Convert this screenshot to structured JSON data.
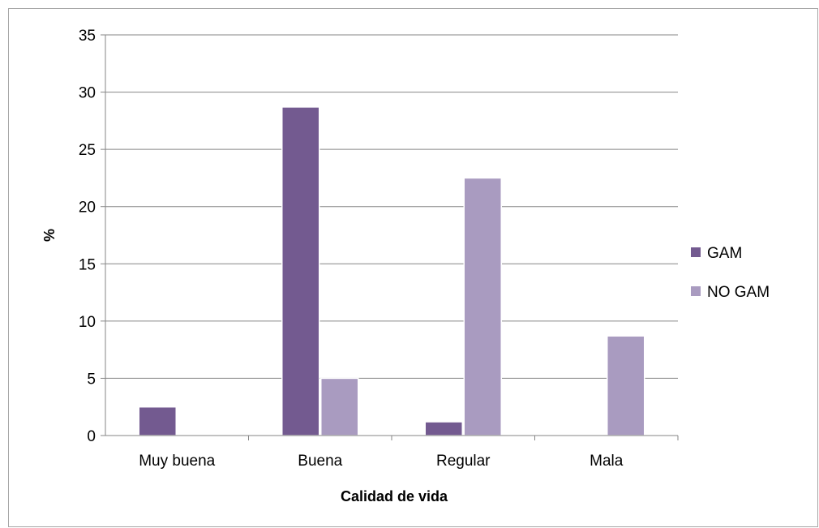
{
  "chart_data": {
    "type": "bar",
    "title": "",
    "xlabel": "Calidad de vida",
    "ylabel": "%",
    "categories": [
      "Muy buena",
      "Buena",
      "Regular",
      "Mala"
    ],
    "series": [
      {
        "name": "GAM",
        "values": [
          2.5,
          28.7,
          1.2,
          0
        ],
        "color": "#735A90"
      },
      {
        "name": "NO GAM",
        "values": [
          0,
          5.0,
          22.5,
          8.7
        ],
        "color": "#A99BC0"
      }
    ],
    "ylim": [
      0,
      35
    ],
    "yticks": [
      0,
      5,
      10,
      15,
      20,
      25,
      30,
      35
    ],
    "grid": true,
    "legend_position": "right"
  }
}
